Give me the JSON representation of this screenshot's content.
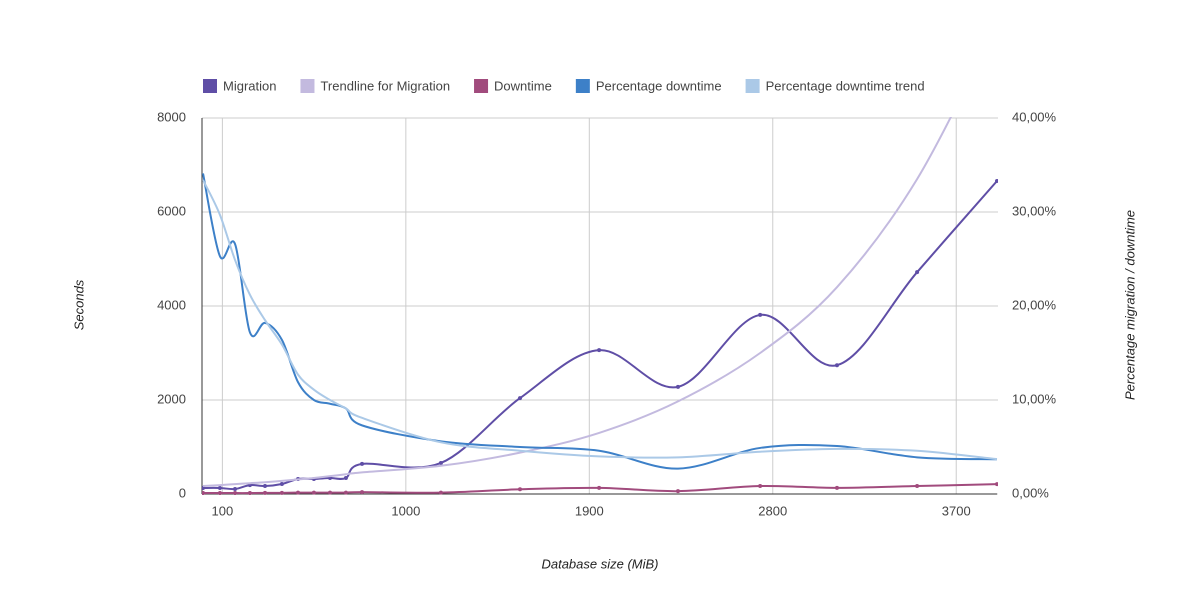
{
  "chart_data": {
    "type": "line",
    "x_label": "Database size (MiB)",
    "y_label": "Seconds",
    "y2_label": "Percentage migration / downtime",
    "x": [
      5,
      88,
      162,
      235,
      309,
      392,
      471,
      549,
      628,
      706,
      785,
      1172,
      1560,
      1948,
      2335,
      2738,
      3115,
      3508,
      3900
    ],
    "xlim": [
      0,
      3900
    ],
    "xticks": [
      100,
      1000,
      1900,
      2800,
      3700
    ],
    "ylim": [
      0,
      8000
    ],
    "yticks": [
      0,
      2000,
      4000,
      6000,
      8000
    ],
    "y2lim": [
      0,
      40
    ],
    "y2ticks": [
      {
        "value": 0,
        "label": "0,00%"
      },
      {
        "value": 10,
        "label": "10,00%"
      },
      {
        "value": 20,
        "label": "20,00%"
      },
      {
        "value": 30,
        "label": "30,00%"
      },
      {
        "value": 40,
        "label": "40,00%"
      }
    ],
    "grid": true,
    "legend": "top",
    "series": [
      {
        "name": "Migration",
        "color": "#5f4ea6",
        "markers": true,
        "values": [
          128,
          128,
          106,
          190,
          170,
          213,
          320,
          320,
          340,
          340,
          640,
          660,
          2040,
          3060,
          2280,
          3810,
          2740,
          4720,
          6660
        ]
      },
      {
        "name": "Trendline for Migration",
        "color": "#c3badf",
        "markers": false,
        "values": [
          170,
          190,
          210,
          230,
          250,
          280,
          310,
          340,
          380,
          420,
          460,
          600,
          880,
          1300,
          1970,
          3000,
          4400,
          6700,
          10000
        ]
      },
      {
        "name": "Downtime",
        "color": "#a14b7d",
        "markers": true,
        "values": [
          20,
          20,
          20,
          20,
          25,
          25,
          30,
          30,
          30,
          30,
          40,
          30,
          100,
          130,
          60,
          170,
          130,
          170,
          210
        ]
      },
      {
        "name": "Percentage downtime",
        "color": "#3d80c8",
        "markers": false,
        "axis": "y2",
        "values": [
          34.1,
          25.3,
          26.6,
          17.2,
          18.2,
          16.4,
          11.9,
          10.0,
          9.6,
          9.1,
          7.3,
          5.6,
          5.0,
          4.6,
          2.7,
          4.9,
          5.1,
          3.9,
          3.7
        ]
      },
      {
        "name": "Percentage downtime trend",
        "color": "#abc9e7",
        "markers": false,
        "axis": "y2",
        "values": [
          33.4,
          29.7,
          24.9,
          21.2,
          18.5,
          15.9,
          12.7,
          11.1,
          10.0,
          9.1,
          8.1,
          5.5,
          4.6,
          4.0,
          3.9,
          4.5,
          4.8,
          4.6,
          3.7
        ]
      }
    ]
  }
}
